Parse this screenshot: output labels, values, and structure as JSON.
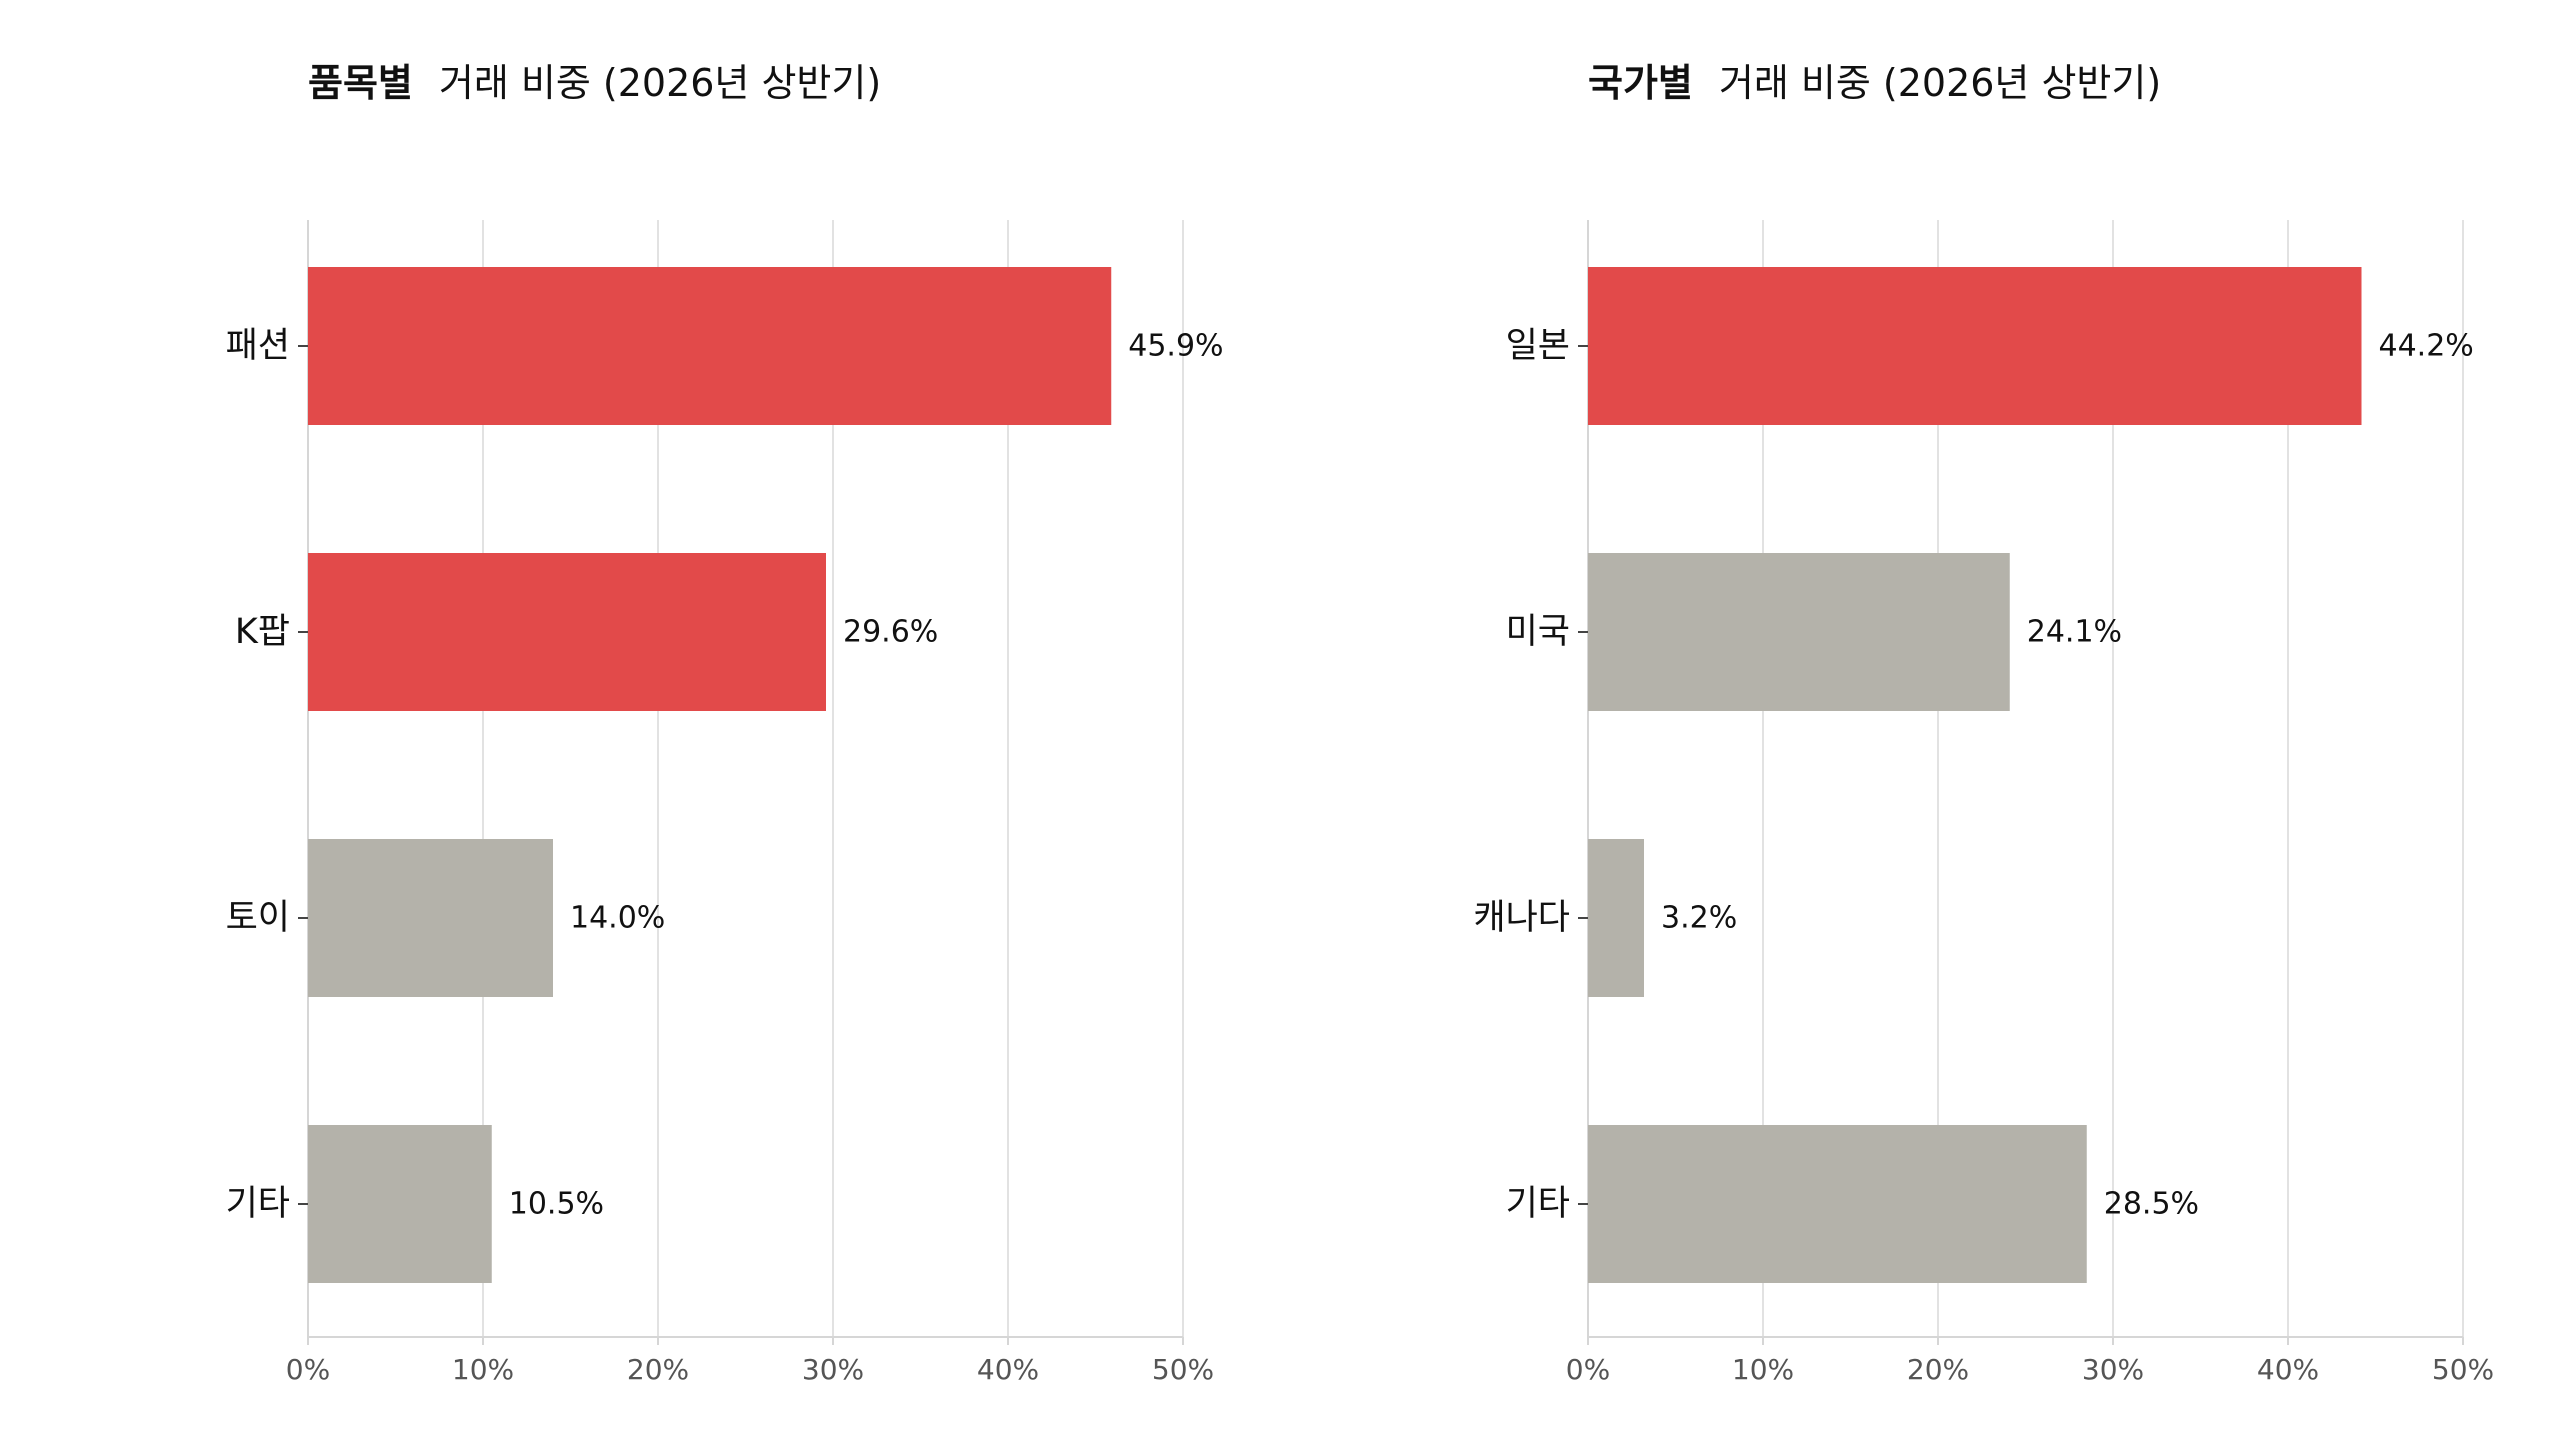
{
  "chart_data": [
    {
      "type": "bar",
      "orientation": "horizontal",
      "title_bold": "품목별",
      "title_rest": "거래 비중 (2026년 상반기)",
      "categories": [
        "패션",
        "K팝",
        "토이",
        "기타"
      ],
      "values": [
        45.9,
        29.6,
        14.0,
        10.5
      ],
      "value_labels": [
        "45.9%",
        "29.6%",
        "14.0%",
        "10.5%"
      ],
      "highlight": [
        true,
        true,
        false,
        false
      ],
      "xlim": [
        0,
        50
      ],
      "x_ticks": [
        0,
        10,
        20,
        30,
        40,
        50
      ],
      "x_tick_labels": [
        "0%",
        "10%",
        "20%",
        "30%",
        "40%",
        "50%"
      ],
      "grid": true,
      "xlabel": "",
      "ylabel": ""
    },
    {
      "type": "bar",
      "orientation": "horizontal",
      "title_bold": "국가별",
      "title_rest": "거래 비중 (2026년 상반기)",
      "categories": [
        "일본",
        "미국",
        "캐나다",
        "기타"
      ],
      "values": [
        44.2,
        24.1,
        3.2,
        28.5
      ],
      "value_labels": [
        "44.2%",
        "24.1%",
        "3.2%",
        "28.5%"
      ],
      "highlight": [
        true,
        false,
        false,
        false
      ],
      "xlim": [
        0,
        50
      ],
      "x_ticks": [
        0,
        10,
        20,
        30,
        40,
        50
      ],
      "x_tick_labels": [
        "0%",
        "10%",
        "20%",
        "30%",
        "40%",
        "50%"
      ],
      "grid": true,
      "xlabel": "",
      "ylabel": ""
    }
  ],
  "colors": {
    "highlight": "#e24a4a",
    "muted": "#b4b2aa"
  }
}
